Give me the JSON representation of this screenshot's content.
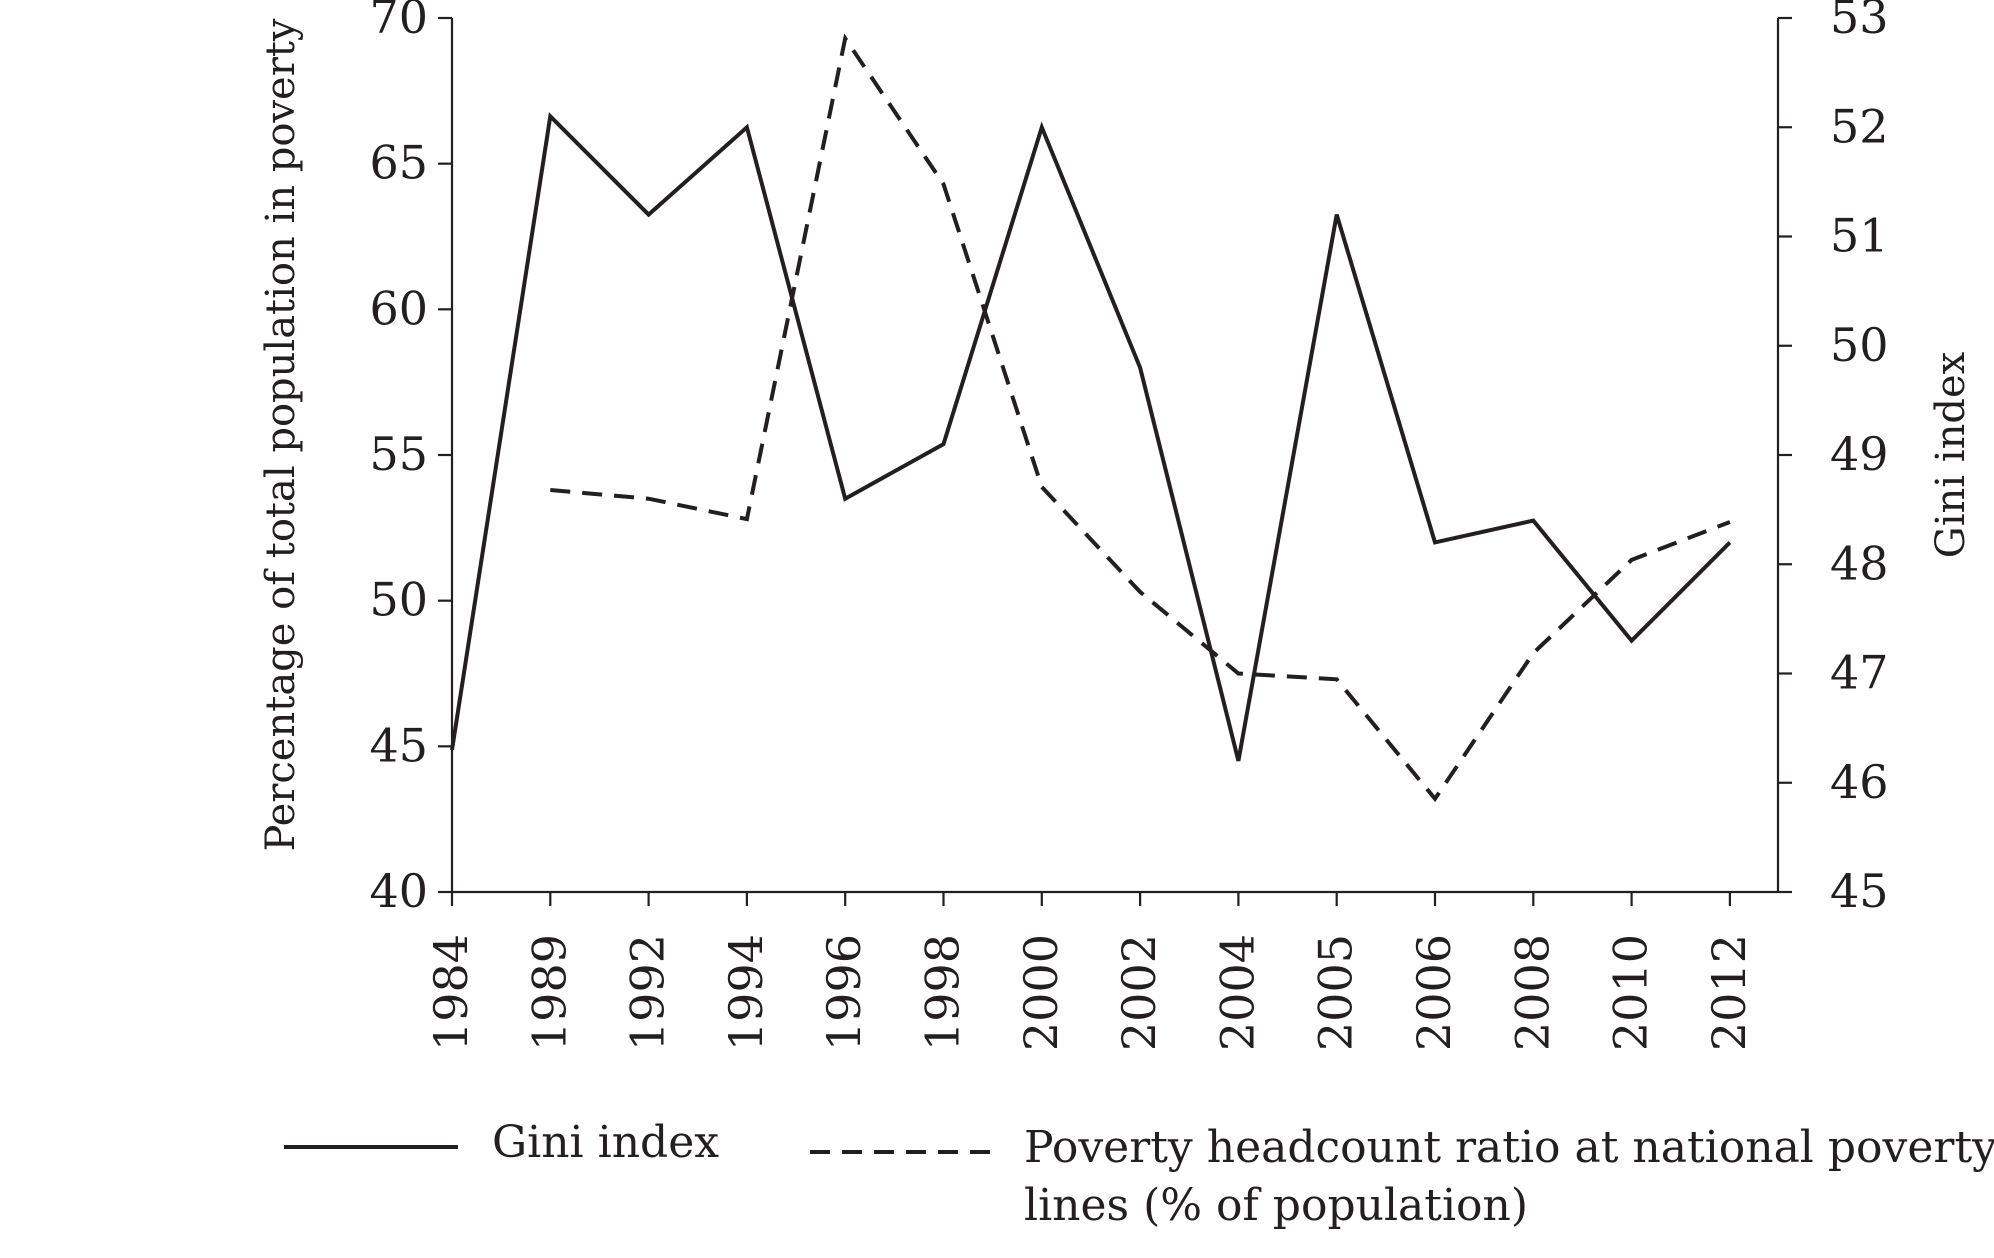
{
  "chart_data": {
    "type": "line",
    "categories": [
      "1984",
      "1989",
      "1992",
      "1994",
      "1996",
      "1998",
      "2000",
      "2002",
      "2004",
      "2005",
      "2006",
      "2008",
      "2010",
      "2012"
    ],
    "ylabel_left": "Percentage of total population in poverty",
    "ylabel_right": "Gini index",
    "ylim_left": [
      40,
      70
    ],
    "yticks_left": [
      40,
      45,
      50,
      55,
      60,
      65,
      70
    ],
    "ylim_right": [
      45,
      53
    ],
    "yticks_right": [
      45,
      46,
      47,
      48,
      49,
      50,
      51,
      52,
      53
    ],
    "grid": false,
    "legend_position": "bottom",
    "series": [
      {
        "name": "Gini index",
        "axis": "right",
        "style": "solid",
        "color": "#231f20",
        "values": [
          46.3,
          52.1,
          51.2,
          52.0,
          48.6,
          49.1,
          52.0,
          49.8,
          46.2,
          51.2,
          48.2,
          48.4,
          47.3,
          48.2
        ]
      },
      {
        "name": "Poverty headcount ratio at national poverty lines (% of population)",
        "legend_lines": [
          "Poverty headcount ratio at national poverty",
          "lines (% of population)"
        ],
        "axis": "left",
        "style": "dashed",
        "color": "#231f20",
        "values": [
          null,
          53.8,
          53.5,
          52.8,
          69.3,
          64.3,
          53.9,
          50.3,
          47.5,
          47.3,
          43.2,
          48.2,
          51.4,
          52.7
        ]
      }
    ]
  }
}
